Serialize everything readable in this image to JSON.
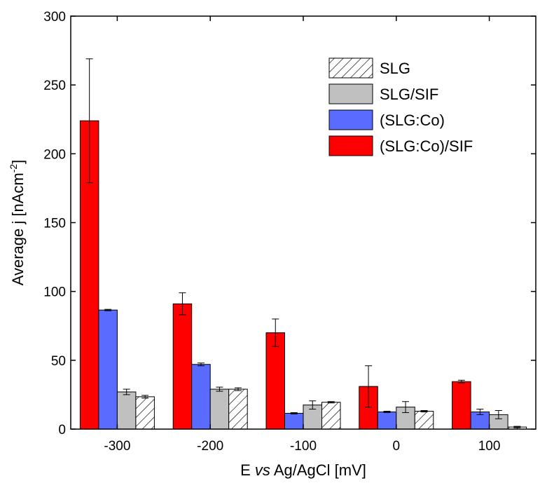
{
  "chart_data": {
    "type": "bar",
    "categories": [
      "-300",
      "-200",
      "-100",
      "0",
      "100"
    ],
    "series": [
      {
        "name": "(SLG:Co)/SIF",
        "color": "#ff0000",
        "pattern": "solid",
        "values": [
          224,
          91,
          70,
          31,
          34.5
        ],
        "errors": [
          45,
          8,
          10,
          15,
          1
        ]
      },
      {
        "name": "(SLG:Co)",
        "color": "#5a6cff",
        "pattern": "solid",
        "values": [
          86.5,
          47,
          11.5,
          12.5,
          12.5
        ],
        "errors": [
          0.5,
          1,
          0.5,
          0.5,
          2
        ]
      },
      {
        "name": "SLG/SIF",
        "color": "#c0c0c0",
        "pattern": "solid",
        "values": [
          27,
          29,
          17.5,
          16,
          10.5
        ],
        "errors": [
          2,
          1.5,
          3,
          4,
          3
        ]
      },
      {
        "name": "SLG",
        "color": "#ffffff",
        "pattern": "hatched",
        "values": [
          23.5,
          29,
          19.5,
          13,
          1.5
        ],
        "errors": [
          1,
          1,
          0.5,
          0.5,
          0.5
        ]
      }
    ],
    "legend_order": [
      "SLG",
      "SLG/SIF",
      "(SLG:Co)",
      "(SLG:Co)/SIF"
    ],
    "xlabel_parts": [
      "E ",
      "vs",
      " Ag/AgCl [mV]"
    ],
    "ylabel_main": "Average j [nAcm",
    "ylabel_sup": "-2",
    "ylabel_end": "]",
    "ylim": [
      0,
      300
    ],
    "yticks": [
      "0",
      "50",
      "100",
      "150",
      "200",
      "250",
      "300"
    ],
    "legend_position": "top-right",
    "grid": false
  }
}
